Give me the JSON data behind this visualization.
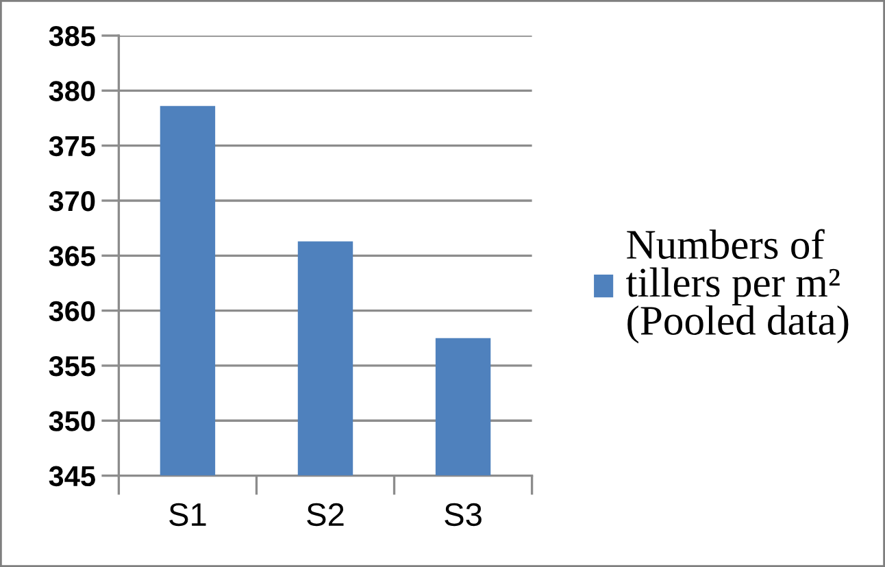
{
  "chart_data": {
    "type": "bar",
    "categories": [
      "S1",
      "S2",
      "S3"
    ],
    "series": [
      {
        "name": "Numbers of\ntillers per m²\n(Pooled data)",
        "color": "#4f81bd",
        "values": [
          378.6,
          366.3,
          357.5
        ]
      }
    ],
    "ylim": [
      345,
      385
    ],
    "yticks": [
      345,
      350,
      355,
      360,
      365,
      370,
      375,
      380,
      385
    ],
    "grid": "y",
    "legend": "right"
  }
}
